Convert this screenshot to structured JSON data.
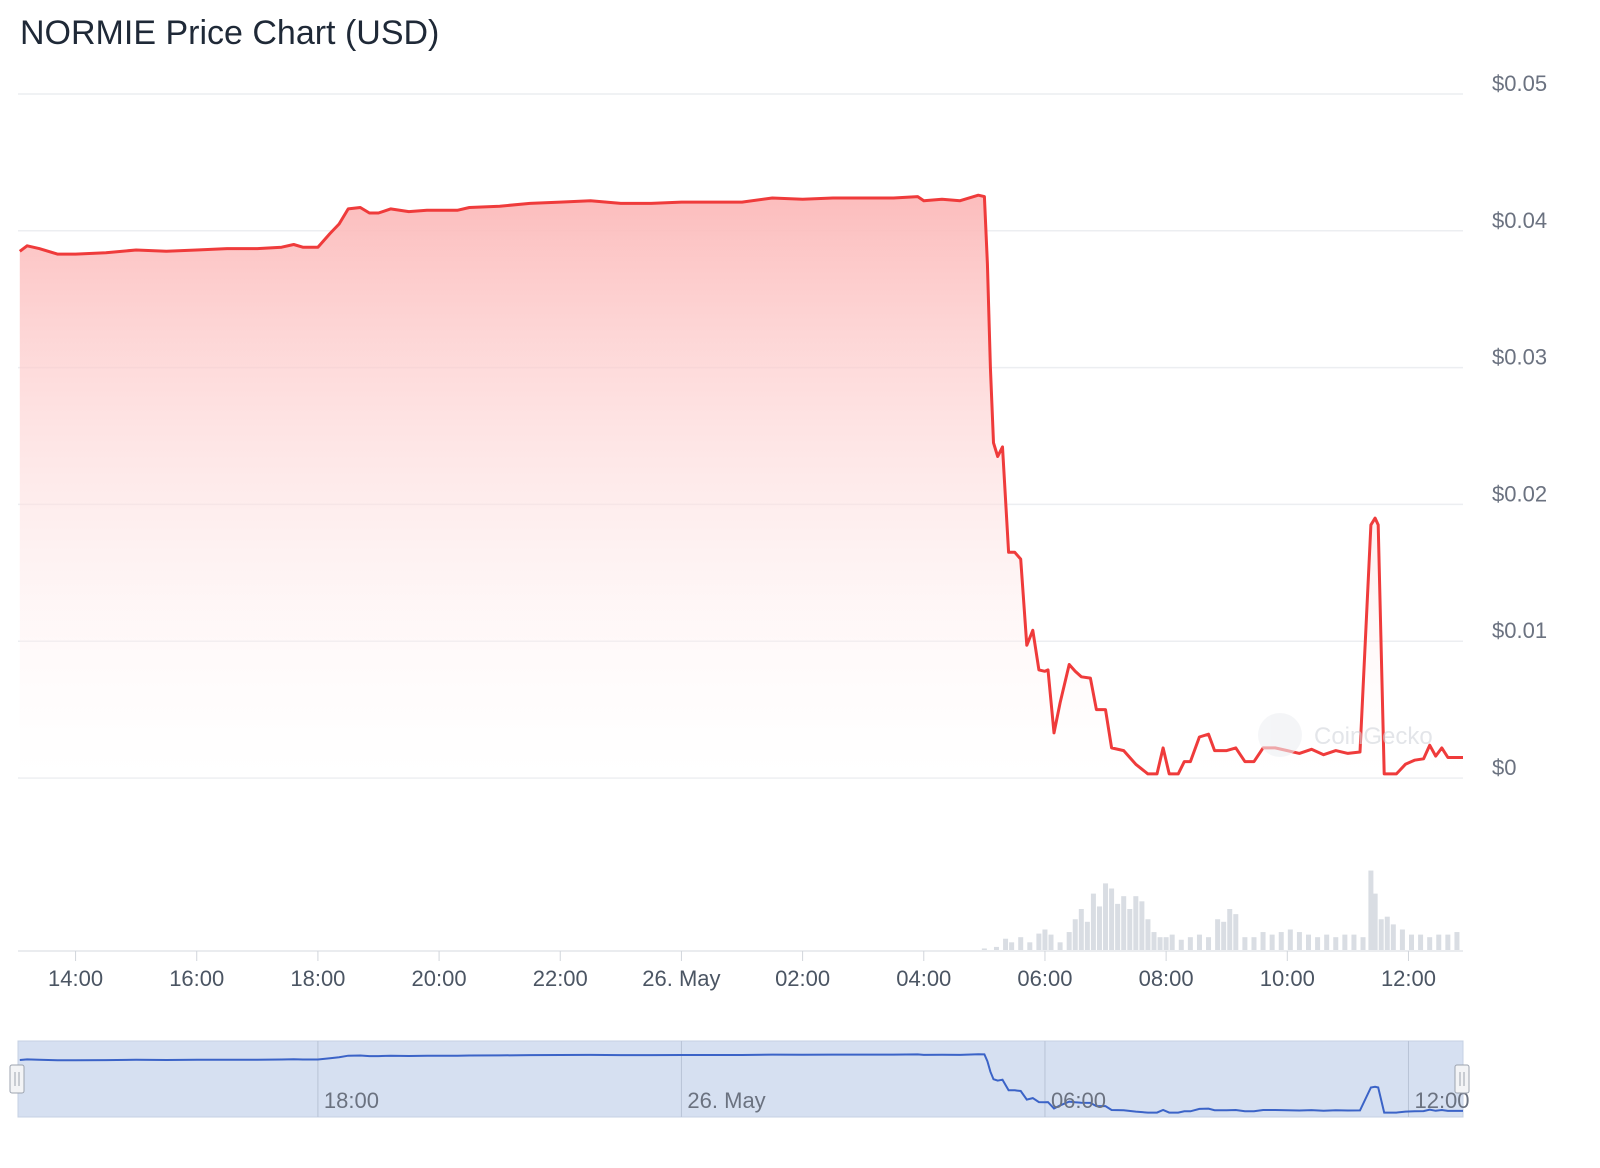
{
  "title": "NORMIE Price Chart (USD)",
  "watermark": "CoinGecko",
  "colors": {
    "price_line": "#ef3b3b",
    "area_top": "#fcb9b9",
    "volume_bar": "#d9dde3",
    "navigator_fill": "#d6e0f1",
    "navigator_line": "#3b63c7",
    "grid": "#eceef1"
  },
  "chart_data": {
    "type": "area",
    "title": "NORMIE Price Chart (USD)",
    "xlabel": "",
    "ylabel": "",
    "ylim": [
      0,
      0.05
    ],
    "grid": true,
    "y_ticks": [
      {
        "value": 0.05,
        "label": "$0.05"
      },
      {
        "value": 0.04,
        "label": "$0.04"
      },
      {
        "value": 0.03,
        "label": "$0.03"
      },
      {
        "value": 0.02,
        "label": "$0.02"
      },
      {
        "value": 0.01,
        "label": "$0.01"
      },
      {
        "value": 0,
        "label": "$0"
      }
    ],
    "x_range_hours": [
      13.05,
      36.9
    ],
    "x_ticks": [
      {
        "t": 14,
        "label": "14:00"
      },
      {
        "t": 16,
        "label": "16:00"
      },
      {
        "t": 18,
        "label": "18:00"
      },
      {
        "t": 20,
        "label": "20:00"
      },
      {
        "t": 22,
        "label": "22:00"
      },
      {
        "t": 24,
        "label": "26. May"
      },
      {
        "t": 26,
        "label": "02:00"
      },
      {
        "t": 28,
        "label": "04:00"
      },
      {
        "t": 30,
        "label": "06:00"
      },
      {
        "t": 32,
        "label": "08:00"
      },
      {
        "t": 34,
        "label": "10:00"
      },
      {
        "t": 36,
        "label": "12:00"
      }
    ],
    "navigator_ticks": [
      {
        "t": 18,
        "label": "18:00"
      },
      {
        "t": 24,
        "label": "26. May"
      },
      {
        "t": 30,
        "label": "06:00"
      },
      {
        "t": 36,
        "label": "12:00"
      }
    ],
    "series": [
      {
        "type": "price",
        "points": [
          [
            13.08,
            0.0385
          ],
          [
            13.2,
            0.0389
          ],
          [
            13.4,
            0.0387
          ],
          [
            13.7,
            0.0383
          ],
          [
            14.0,
            0.0383
          ],
          [
            14.5,
            0.0384
          ],
          [
            15.0,
            0.0386
          ],
          [
            15.5,
            0.0385
          ],
          [
            16.0,
            0.0386
          ],
          [
            16.5,
            0.0387
          ],
          [
            17.0,
            0.0387
          ],
          [
            17.4,
            0.0388
          ],
          [
            17.6,
            0.039
          ],
          [
            17.75,
            0.0388
          ],
          [
            18.0,
            0.0388
          ],
          [
            18.2,
            0.0398
          ],
          [
            18.35,
            0.0405
          ],
          [
            18.5,
            0.0416
          ],
          [
            18.7,
            0.0417
          ],
          [
            18.85,
            0.0413
          ],
          [
            19.0,
            0.0413
          ],
          [
            19.2,
            0.0416
          ],
          [
            19.5,
            0.0414
          ],
          [
            19.8,
            0.0415
          ],
          [
            20.0,
            0.0415
          ],
          [
            20.3,
            0.0415
          ],
          [
            20.5,
            0.0417
          ],
          [
            21.0,
            0.0418
          ],
          [
            21.5,
            0.042
          ],
          [
            22.0,
            0.0421
          ],
          [
            22.5,
            0.0422
          ],
          [
            23.0,
            0.042
          ],
          [
            23.5,
            0.042
          ],
          [
            24.0,
            0.0421
          ],
          [
            24.5,
            0.0421
          ],
          [
            25.0,
            0.0421
          ],
          [
            25.5,
            0.0424
          ],
          [
            26.0,
            0.0423
          ],
          [
            26.5,
            0.0424
          ],
          [
            27.0,
            0.0424
          ],
          [
            27.5,
            0.0424
          ],
          [
            27.9,
            0.0425
          ],
          [
            28.0,
            0.0422
          ],
          [
            28.3,
            0.0423
          ],
          [
            28.6,
            0.0422
          ],
          [
            28.9,
            0.0426
          ],
          [
            29.0,
            0.0425
          ],
          [
            29.05,
            0.0376
          ],
          [
            29.1,
            0.03
          ],
          [
            29.15,
            0.0245
          ],
          [
            29.22,
            0.0235
          ],
          [
            29.3,
            0.0242
          ],
          [
            29.4,
            0.0165
          ],
          [
            29.5,
            0.0165
          ],
          [
            29.6,
            0.016
          ],
          [
            29.7,
            0.0097
          ],
          [
            29.8,
            0.0108
          ],
          [
            29.9,
            0.0079
          ],
          [
            30.0,
            0.0078
          ],
          [
            30.05,
            0.0079
          ],
          [
            30.15,
            0.0033
          ],
          [
            30.25,
            0.0055
          ],
          [
            30.4,
            0.0083
          ],
          [
            30.5,
            0.0078
          ],
          [
            30.6,
            0.0074
          ],
          [
            30.75,
            0.0073
          ],
          [
            30.85,
            0.005
          ],
          [
            31.0,
            0.005
          ],
          [
            31.1,
            0.0022
          ],
          [
            31.3,
            0.002
          ],
          [
            31.5,
            0.001
          ],
          [
            31.7,
            0.0003
          ],
          [
            31.85,
            0.0003
          ],
          [
            31.95,
            0.0022
          ],
          [
            32.05,
            0.0003
          ],
          [
            32.2,
            0.0003
          ],
          [
            32.3,
            0.0012
          ],
          [
            32.4,
            0.0012
          ],
          [
            32.55,
            0.003
          ],
          [
            32.7,
            0.0032
          ],
          [
            32.8,
            0.002
          ],
          [
            33.0,
            0.002
          ],
          [
            33.15,
            0.0022
          ],
          [
            33.3,
            0.0012
          ],
          [
            33.45,
            0.0012
          ],
          [
            33.6,
            0.0022
          ],
          [
            33.8,
            0.0022
          ],
          [
            34.0,
            0.002
          ],
          [
            34.2,
            0.0018
          ],
          [
            34.4,
            0.0021
          ],
          [
            34.6,
            0.0017
          ],
          [
            34.8,
            0.002
          ],
          [
            35.0,
            0.0018
          ],
          [
            35.2,
            0.0019
          ],
          [
            35.38,
            0.0185
          ],
          [
            35.45,
            0.019
          ],
          [
            35.5,
            0.0185
          ],
          [
            35.6,
            0.0003
          ],
          [
            35.8,
            0.0003
          ],
          [
            35.95,
            0.001
          ],
          [
            36.1,
            0.0013
          ],
          [
            36.25,
            0.0014
          ],
          [
            36.35,
            0.0024
          ],
          [
            36.45,
            0.0016
          ],
          [
            36.55,
            0.0022
          ],
          [
            36.65,
            0.0015
          ],
          [
            36.9,
            0.0015
          ]
        ]
      },
      {
        "type": "volume",
        "points": [
          [
            29.0,
            0.3
          ],
          [
            29.2,
            0.6
          ],
          [
            29.35,
            2.2
          ],
          [
            29.45,
            1.5
          ],
          [
            29.6,
            2.5
          ],
          [
            29.75,
            1.5
          ],
          [
            29.9,
            3.2
          ],
          [
            30.0,
            4.0
          ],
          [
            30.1,
            3.0
          ],
          [
            30.25,
            1.5
          ],
          [
            30.4,
            3.5
          ],
          [
            30.5,
            6.0
          ],
          [
            30.6,
            8.0
          ],
          [
            30.7,
            5.5
          ],
          [
            30.8,
            11.0
          ],
          [
            30.9,
            8.5
          ],
          [
            31.0,
            13.0
          ],
          [
            31.1,
            12.0
          ],
          [
            31.2,
            9.0
          ],
          [
            31.3,
            10.5
          ],
          [
            31.4,
            8.0
          ],
          [
            31.5,
            10.5
          ],
          [
            31.6,
            9.5
          ],
          [
            31.7,
            6.0
          ],
          [
            31.8,
            3.5
          ],
          [
            31.9,
            2.5
          ],
          [
            32.0,
            2.5
          ],
          [
            32.1,
            3.0
          ],
          [
            32.25,
            2.0
          ],
          [
            32.4,
            2.5
          ],
          [
            32.55,
            3.0
          ],
          [
            32.7,
            2.5
          ],
          [
            32.85,
            6.0
          ],
          [
            32.95,
            5.5
          ],
          [
            33.05,
            8.0
          ],
          [
            33.15,
            7.0
          ],
          [
            33.3,
            2.5
          ],
          [
            33.45,
            2.5
          ],
          [
            33.6,
            3.5
          ],
          [
            33.75,
            3.0
          ],
          [
            33.9,
            3.5
          ],
          [
            34.05,
            4.0
          ],
          [
            34.2,
            3.5
          ],
          [
            34.35,
            3.0
          ],
          [
            34.5,
            2.5
          ],
          [
            34.65,
            3.0
          ],
          [
            34.8,
            2.5
          ],
          [
            34.95,
            3.0
          ],
          [
            35.1,
            3.0
          ],
          [
            35.25,
            2.5
          ],
          [
            35.38,
            15.5
          ],
          [
            35.45,
            11.0
          ],
          [
            35.55,
            6.0
          ],
          [
            35.65,
            6.5
          ],
          [
            35.75,
            5.0
          ],
          [
            35.9,
            4.0
          ],
          [
            36.05,
            3.0
          ],
          [
            36.2,
            3.0
          ],
          [
            36.35,
            2.5
          ],
          [
            36.5,
            3.0
          ],
          [
            36.65,
            3.0
          ],
          [
            36.8,
            3.5
          ]
        ]
      }
    ]
  }
}
